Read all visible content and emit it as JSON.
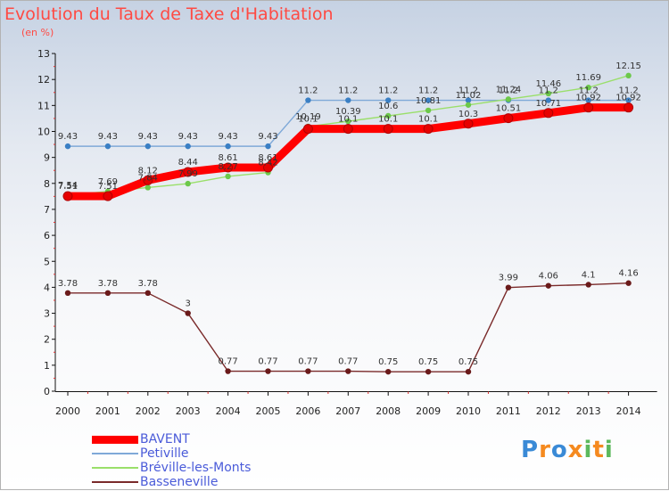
{
  "title": "Evolution du Taux de Taxe d'Habitation",
  "subtitle": "(en %)",
  "logo": {
    "text": "Proxiti",
    "letter_colors": [
      "#3a8ad6",
      "#f58a1f",
      "#3a8ad6",
      "#f58a1f",
      "#5cb85c",
      "#f58a1f",
      "#5cb85c"
    ]
  },
  "chart_data": {
    "type": "line",
    "title": "Evolution du Taux de Taxe d'Habitation",
    "ylabel": "(en %)",
    "xlabel": "",
    "x": [
      "2000",
      "2001",
      "2002",
      "2003",
      "2004",
      "2005",
      "2006",
      "2007",
      "2008",
      "2009",
      "2010",
      "2011",
      "2012",
      "2013",
      "2014"
    ],
    "yticks": [
      "0",
      "1",
      "2",
      "3",
      "4",
      "5",
      "6",
      "7",
      "8",
      "9",
      "10",
      "11",
      "12",
      "13"
    ],
    "ylim": [
      0,
      13
    ],
    "grid": false,
    "legend_position": "bottom-left",
    "series": [
      {
        "name": "BAVENT",
        "color": "#ff0000",
        "marker_color": "#e60000",
        "emphasis": "thick",
        "values": [
          7.51,
          7.51,
          8.12,
          8.44,
          8.61,
          8.61,
          10.1,
          10.1,
          10.1,
          10.1,
          10.3,
          10.51,
          10.71,
          10.92,
          10.92
        ],
        "labels": [
          "7.51",
          "7.51",
          "8.12",
          "8.44",
          "8.61",
          "8.61",
          "10.1",
          "10.1",
          "10.1",
          "10.1",
          "10.3",
          "10.51",
          "10.71",
          "10.92",
          "10.92"
        ]
      },
      {
        "name": "Petiville",
        "color": "#7fa9d8",
        "marker_color": "#3a7fc4",
        "emphasis": "thin",
        "values": [
          9.43,
          9.43,
          9.43,
          9.43,
          9.43,
          9.43,
          11.2,
          11.2,
          11.2,
          11.2,
          11.2,
          11.2,
          11.2,
          11.2,
          11.2
        ],
        "labels": [
          "9.43",
          "9.43",
          "9.43",
          "9.43",
          "9.43",
          "9.43",
          "11.2",
          "11.2",
          "11.2",
          "11.2",
          "11.2",
          "11.2",
          "11.2",
          "11.2",
          "11.2"
        ]
      },
      {
        "name": "Bréville-les-Monts",
        "color": "#9adf6a",
        "marker_color": "#6cc84a",
        "emphasis": "thin",
        "values": [
          7.54,
          7.69,
          7.84,
          7.99,
          8.27,
          8.42,
          10.19,
          10.39,
          10.6,
          10.81,
          11.02,
          11.24,
          11.46,
          11.69,
          12.15
        ],
        "labels": [
          "7.54",
          "7.69",
          "7.84",
          "7.99",
          "8.27",
          "8.42",
          "10.19",
          "10.39",
          "10.6",
          "10.81",
          "11.02",
          "11.24",
          "11.46",
          "11.69",
          "12.15"
        ]
      },
      {
        "name": "Basseneville",
        "color": "#7a2a2a",
        "marker_color": "#6a1a1a",
        "emphasis": "thin",
        "values": [
          3.78,
          3.78,
          3.78,
          3.0,
          0.77,
          0.77,
          0.77,
          0.77,
          0.75,
          0.75,
          0.75,
          3.99,
          4.06,
          4.1,
          4.16
        ],
        "labels": [
          "3.78",
          "3.78",
          "3.78",
          "3",
          "0.77",
          "0.77",
          "0.77",
          "0.77",
          "0.75",
          "0.75",
          "0.75",
          "3.99",
          "4.06",
          "4.1",
          "4.16"
        ]
      }
    ]
  }
}
